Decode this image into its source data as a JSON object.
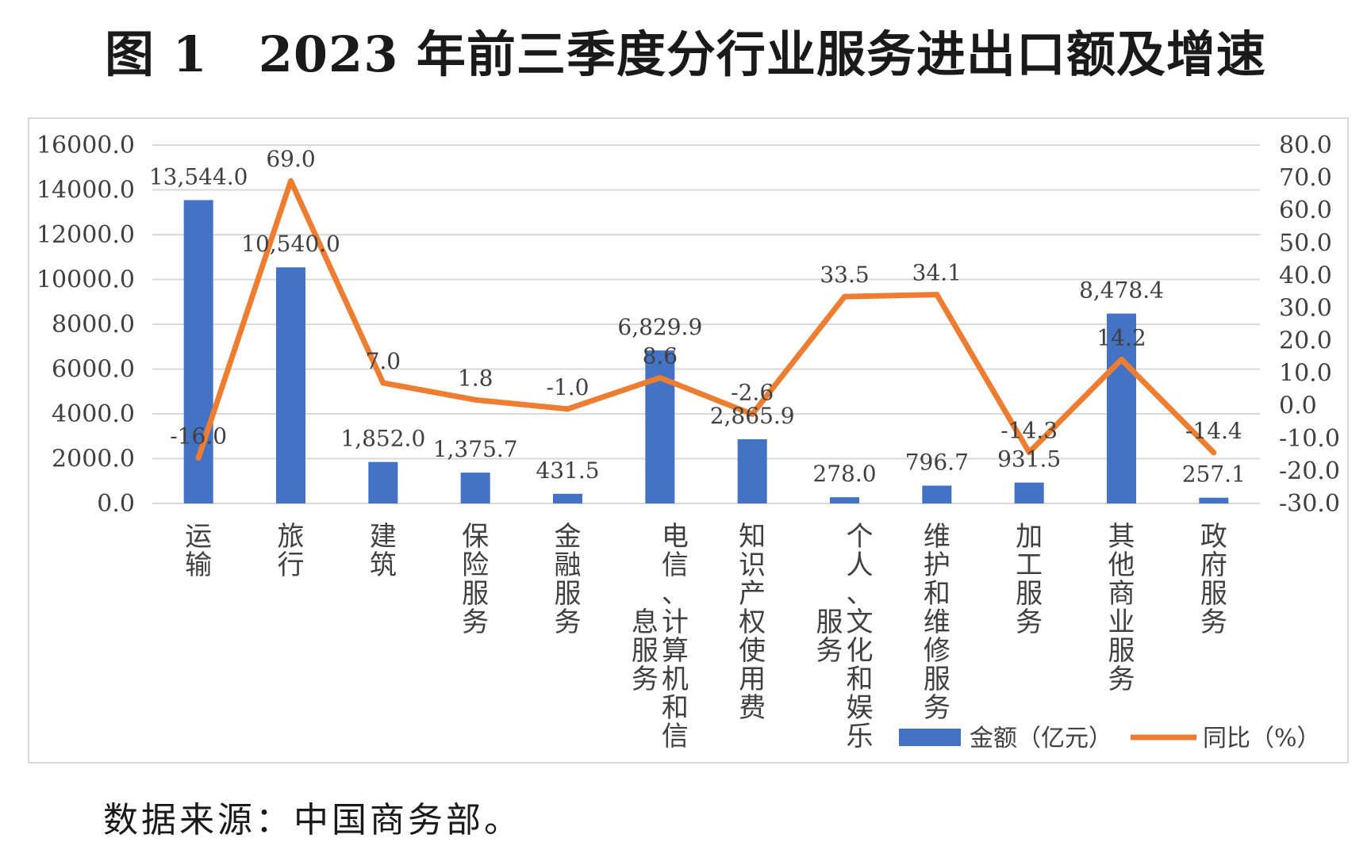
{
  "page": {
    "fig_label": "图 1",
    "title": "2023 年前三季度分行业服务进出口额及增速",
    "source": "数据来源：中国商务部。"
  },
  "chart_data": {
    "type": "bar+line",
    "categories": [
      [
        "运",
        "输"
      ],
      [
        "旅",
        "行"
      ],
      [
        "建",
        "筑"
      ],
      [
        "保",
        "险",
        "服",
        "务"
      ],
      [
        "金",
        "融",
        "服",
        "务"
      ],
      [
        "电",
        "信",
        "、",
        "计",
        "算",
        "机",
        "和",
        "信",
        "息",
        "服",
        "务"
      ],
      [
        "知",
        "识",
        "产",
        "权",
        "使",
        "用",
        "费"
      ],
      [
        "个",
        "人",
        "、",
        "文",
        "化",
        "和",
        "娱",
        "乐",
        "服",
        "务"
      ],
      [
        "维",
        "护",
        "和",
        "维",
        "修",
        "服",
        "务"
      ],
      [
        "加",
        "工",
        "服",
        "务"
      ],
      [
        "其",
        "他",
        "商",
        "业",
        "服",
        "务"
      ],
      [
        "政",
        "府",
        "服",
        "务"
      ]
    ],
    "category_column_breaks": [
      null,
      null,
      null,
      null,
      null,
      8,
      null,
      8,
      null,
      null,
      null,
      null
    ],
    "series": [
      {
        "name": "金额（亿元）",
        "type": "bar",
        "axis": "left",
        "color": "#4472c4",
        "values": [
          13544.0,
          10540.0,
          1852.0,
          1375.7,
          431.5,
          6829.9,
          2865.9,
          278.0,
          796.7,
          931.5,
          8478.4,
          257.1
        ],
        "labels": [
          "13,544.0",
          "10,540.0",
          "1,852.0",
          "1,375.7",
          "431.5",
          "6,829.9",
          "2,865.9",
          "278.0",
          "796.7",
          "931.5",
          "8,478.4",
          "257.1"
        ]
      },
      {
        "name": "同比（%）",
        "type": "line",
        "axis": "right",
        "color": "#ed7d31",
        "values": [
          -16.0,
          69.0,
          7.0,
          1.8,
          -1.0,
          8.6,
          -2.6,
          33.5,
          34.1,
          -14.3,
          14.2,
          -14.4
        ],
        "labels": [
          "-16.0",
          "69.0",
          "7.0",
          "1.8",
          "-1.0",
          "8.6",
          "-2.6",
          "33.5",
          "34.1",
          "-14.3",
          "14.2",
          "-14.4"
        ]
      }
    ],
    "y_left": {
      "min": 0,
      "max": 16000,
      "step": 2000,
      "ticks": [
        "0.0",
        "2000.0",
        "4000.0",
        "6000.0",
        "8000.0",
        "10000.0",
        "12000.0",
        "14000.0",
        "16000.0"
      ]
    },
    "y_right": {
      "min": -30,
      "max": 80,
      "step": 10,
      "ticks": [
        "-30.0",
        "-20.0",
        "-10.0",
        "0.0",
        "10.0",
        "20.0",
        "30.0",
        "40.0",
        "50.0",
        "60.0",
        "70.0",
        "80.0"
      ]
    },
    "grid": true,
    "legend_position": "bottom-right"
  }
}
